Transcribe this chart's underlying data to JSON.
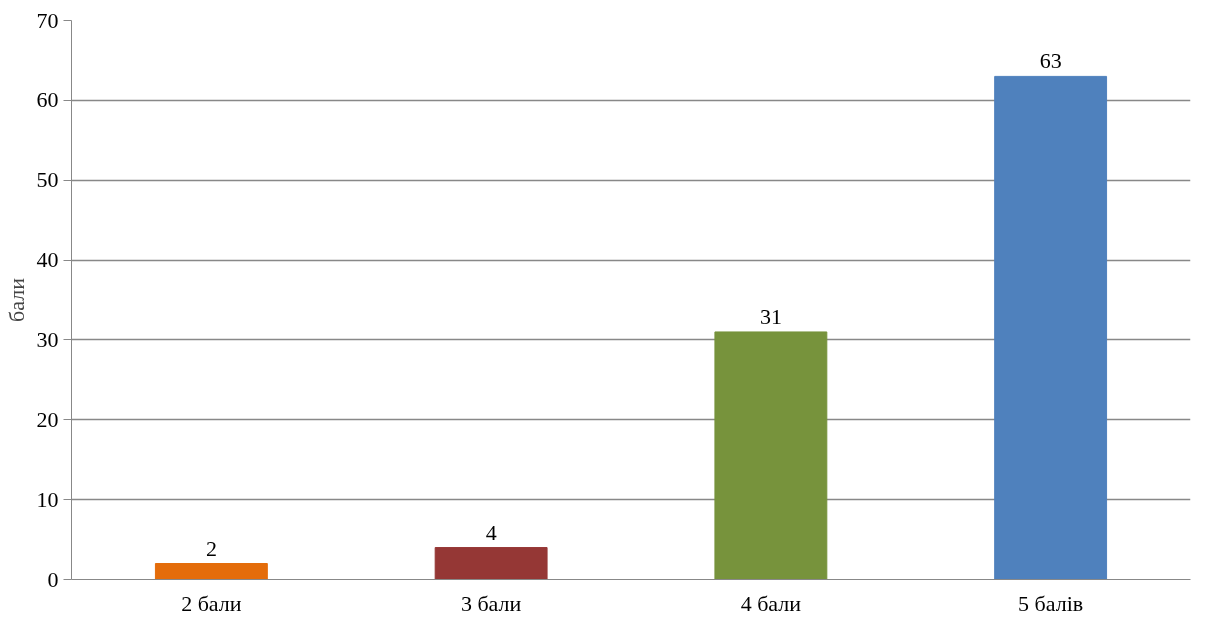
{
  "chart_data": {
    "type": "bar",
    "ylabel": "бали",
    "categories": [
      "2 бали",
      "3 бали",
      "4 бали",
      "5 балів"
    ],
    "values": [
      2,
      4,
      31,
      63
    ],
    "colors": [
      "#e46c0a",
      "#953735",
      "#77933c",
      "#4f81bd"
    ],
    "ylim": [
      0,
      70
    ],
    "yticks": [
      0,
      10,
      20,
      30,
      40,
      50,
      60,
      70
    ],
    "grid": "y",
    "data_labels": true
  }
}
